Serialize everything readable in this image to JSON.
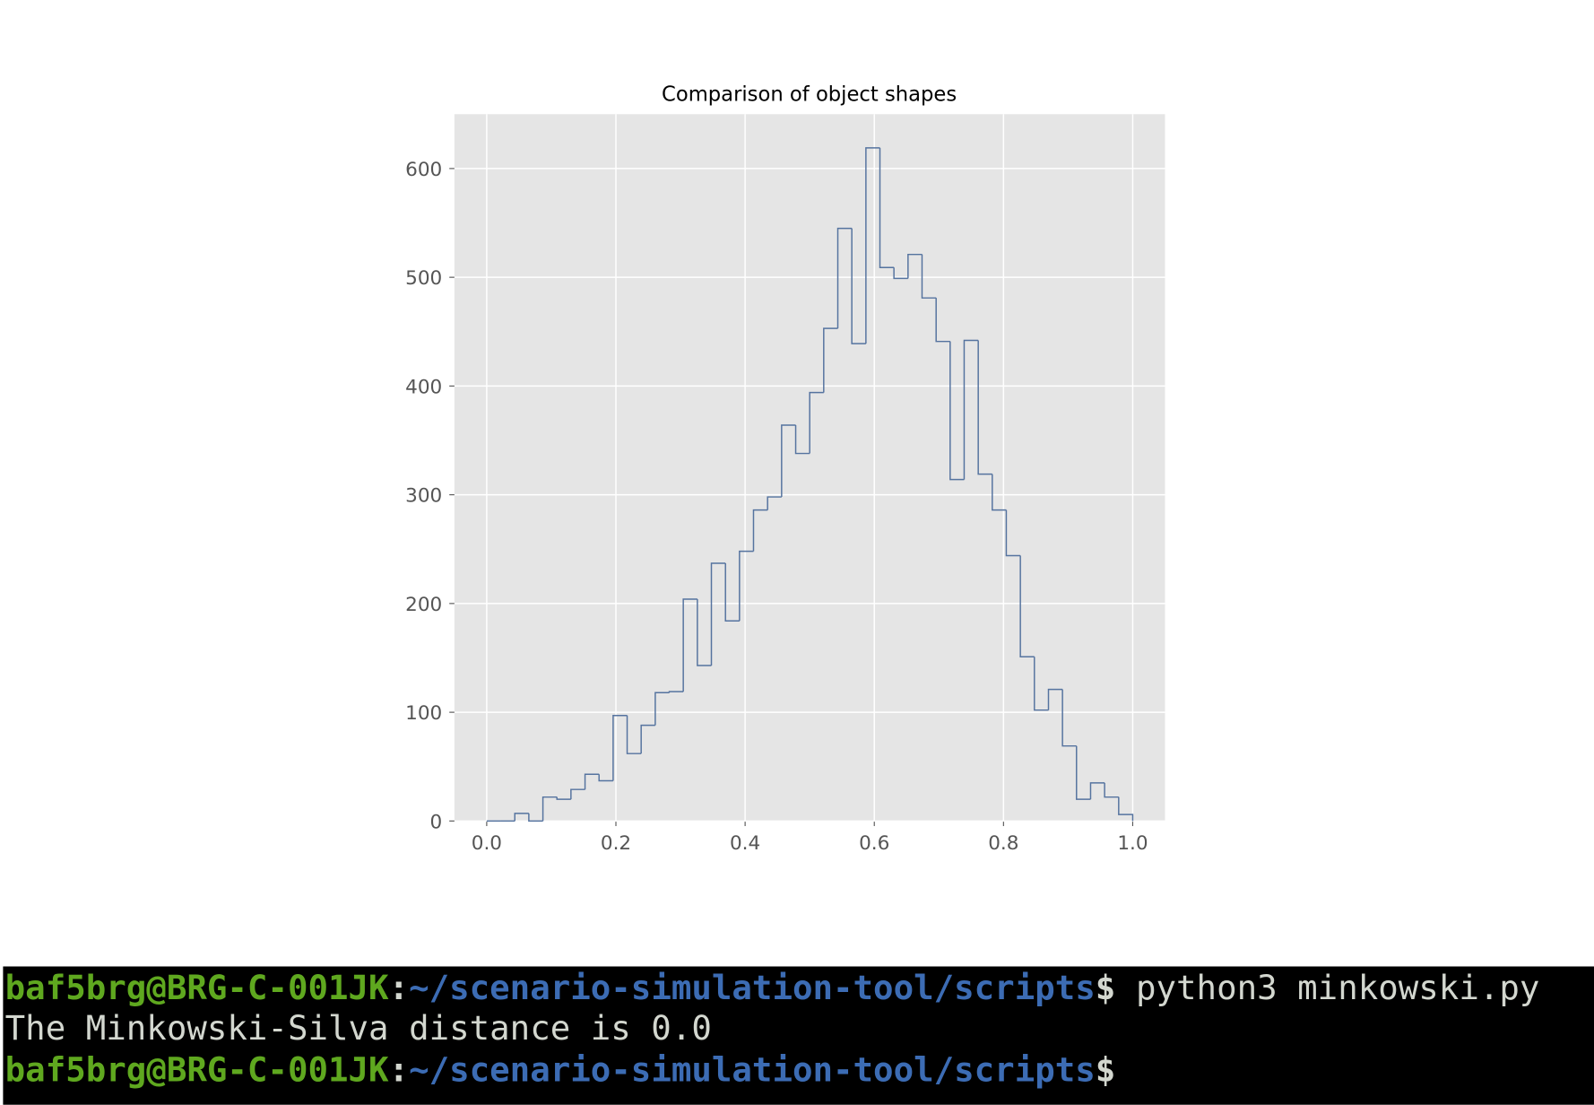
{
  "chart_data": {
    "type": "histogram",
    "title": "Comparison of object shapes",
    "bins": [
      0,
      0.0217,
      0.0435,
      0.0652,
      0.087,
      0.1087,
      0.1304,
      0.1522,
      0.1739,
      0.1957,
      0.2174,
      0.2391,
      0.2609,
      0.2826,
      0.3043,
      0.3261,
      0.3478,
      0.3696,
      0.3913,
      0.413,
      0.4348,
      0.4565,
      0.4783,
      0.5,
      0.5217,
      0.5435,
      0.5652,
      0.587,
      0.6087,
      0.6304,
      0.6522,
      0.6739,
      0.6957,
      0.7174,
      0.7391,
      0.7609,
      0.7826,
      0.8043,
      0.8261,
      0.8478,
      0.8696,
      0.8913,
      0.913,
      0.9348,
      0.9565,
      0.9783,
      1
    ],
    "values": [
      0,
      0,
      7,
      0,
      22,
      20,
      29,
      43,
      37,
      97,
      62,
      88,
      118,
      119,
      204,
      143,
      237,
      184,
      248,
      286,
      298,
      364,
      338,
      394,
      453,
      545,
      439,
      619,
      509,
      499,
      521,
      481,
      441,
      314,
      442,
      319,
      286,
      244,
      151,
      102,
      121,
      69,
      20,
      35,
      22,
      6
    ],
    "color": "#55739f",
    "histtype": "step",
    "xlim": [
      -0.05,
      1.05
    ],
    "xticks": [
      {
        "value": 0,
        "label": "0.0"
      },
      0.2,
      0.4,
      0.6,
      0.8,
      {
        "value": 1,
        "label": "1.0"
      }
    ],
    "ylim": [
      0,
      650
    ],
    "yticks": [
      0,
      100,
      200,
      300,
      400,
      500,
      600
    ],
    "grid": true
  },
  "terminal": {
    "lines": [
      {
        "user": "baf5brg@BRG-C-001JK",
        "sep": ":",
        "path": "~/scenario-simulation-tool/scripts",
        "prompt": "$",
        "command": "python3 minkowski.py"
      },
      {
        "output": "The Minkowski-Silva distance is 0.0"
      },
      {
        "user": "baf5brg@BRG-C-001JK",
        "sep": ":",
        "path": "~/scenario-simulation-tool/scripts",
        "prompt": "$"
      }
    ]
  }
}
